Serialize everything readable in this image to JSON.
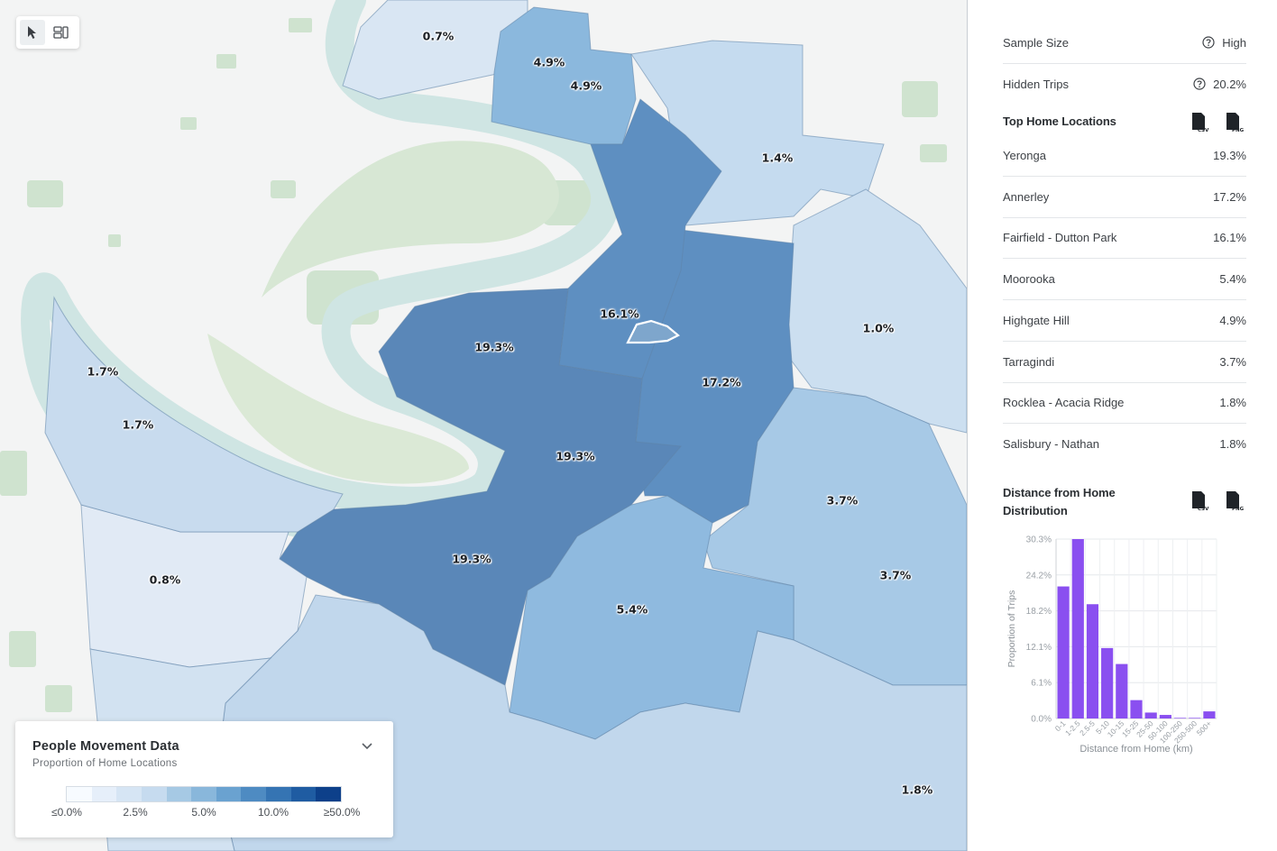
{
  "map": {
    "regions": [
      {
        "label": "0.7%"
      },
      {
        "label": "4.9%"
      },
      {
        "label": "4.9%"
      },
      {
        "label": "1.4%"
      },
      {
        "label": "16.1%"
      },
      {
        "label": "19.3%"
      },
      {
        "label": "19.3%"
      },
      {
        "label": "19.3%"
      },
      {
        "label": "17.2%"
      },
      {
        "label": "1.0%"
      },
      {
        "label": "1.7%"
      },
      {
        "label": "1.7%"
      },
      {
        "label": "0.8%"
      },
      {
        "label": "3.7%"
      },
      {
        "label": "3.7%"
      },
      {
        "label": "5.4%"
      },
      {
        "label": "1.8%"
      }
    ],
    "tools": [
      "cursor-icon",
      "layers-icon"
    ]
  },
  "legend": {
    "title": "People Movement Data",
    "subtitle": "Proportion of Home Locations",
    "ticks": [
      "≤0.0%",
      "2.5%",
      "5.0%",
      "10.0%",
      "≥50.0%"
    ],
    "ramp_colors": [
      "#f7fbff",
      "#e6effa",
      "#d6e5f4",
      "#c6dbef",
      "#a6c9e4",
      "#89b7db",
      "#6aa2d0",
      "#4e8bc2",
      "#3574b3",
      "#1f5ca2",
      "#0d408a"
    ]
  },
  "panel": {
    "sample_size": {
      "label": "Sample Size",
      "value": "High"
    },
    "hidden_trips": {
      "label": "Hidden Trips",
      "value": "20.2%"
    },
    "top_home": {
      "title": "Top Home Locations",
      "items": [
        {
          "name": "Yeronga",
          "value": "19.3%"
        },
        {
          "name": "Annerley",
          "value": "17.2%"
        },
        {
          "name": "Fairfield - Dutton Park",
          "value": "16.1%"
        },
        {
          "name": "Moorooka",
          "value": "5.4%"
        },
        {
          "name": "Highgate Hill",
          "value": "4.9%"
        },
        {
          "name": "Tarragindi",
          "value": "3.7%"
        },
        {
          "name": "Rocklea - Acacia Ridge",
          "value": "1.8%"
        },
        {
          "name": "Salisbury - Nathan",
          "value": "1.8%"
        }
      ]
    },
    "distance": {
      "title_line1": "Distance from Home",
      "title_line2": "Distribution"
    },
    "download": {
      "csv": "CSV",
      "png": "PNG"
    }
  },
  "chart_data": {
    "type": "bar",
    "title": "Distance from Home Distribution",
    "xlabel": "Distance from Home (km)",
    "ylabel": "Proportion of Trips",
    "categories": [
      "0-1",
      "1-2.5",
      "2.5-5",
      "5-10",
      "10-15",
      "15-25",
      "25-50",
      "50-100",
      "100-250",
      "250-500",
      "500+"
    ],
    "values": [
      22.3,
      30.3,
      19.3,
      11.9,
      9.2,
      3.1,
      1.0,
      0.6,
      0.1,
      0.1,
      1.2
    ],
    "ylim": [
      0,
      30.3
    ],
    "yticks": [
      "0.0%",
      "6.1%",
      "12.1%",
      "18.2%",
      "24.2%",
      "30.3%"
    ],
    "bar_color": "#8a4ff0",
    "grid": true
  }
}
